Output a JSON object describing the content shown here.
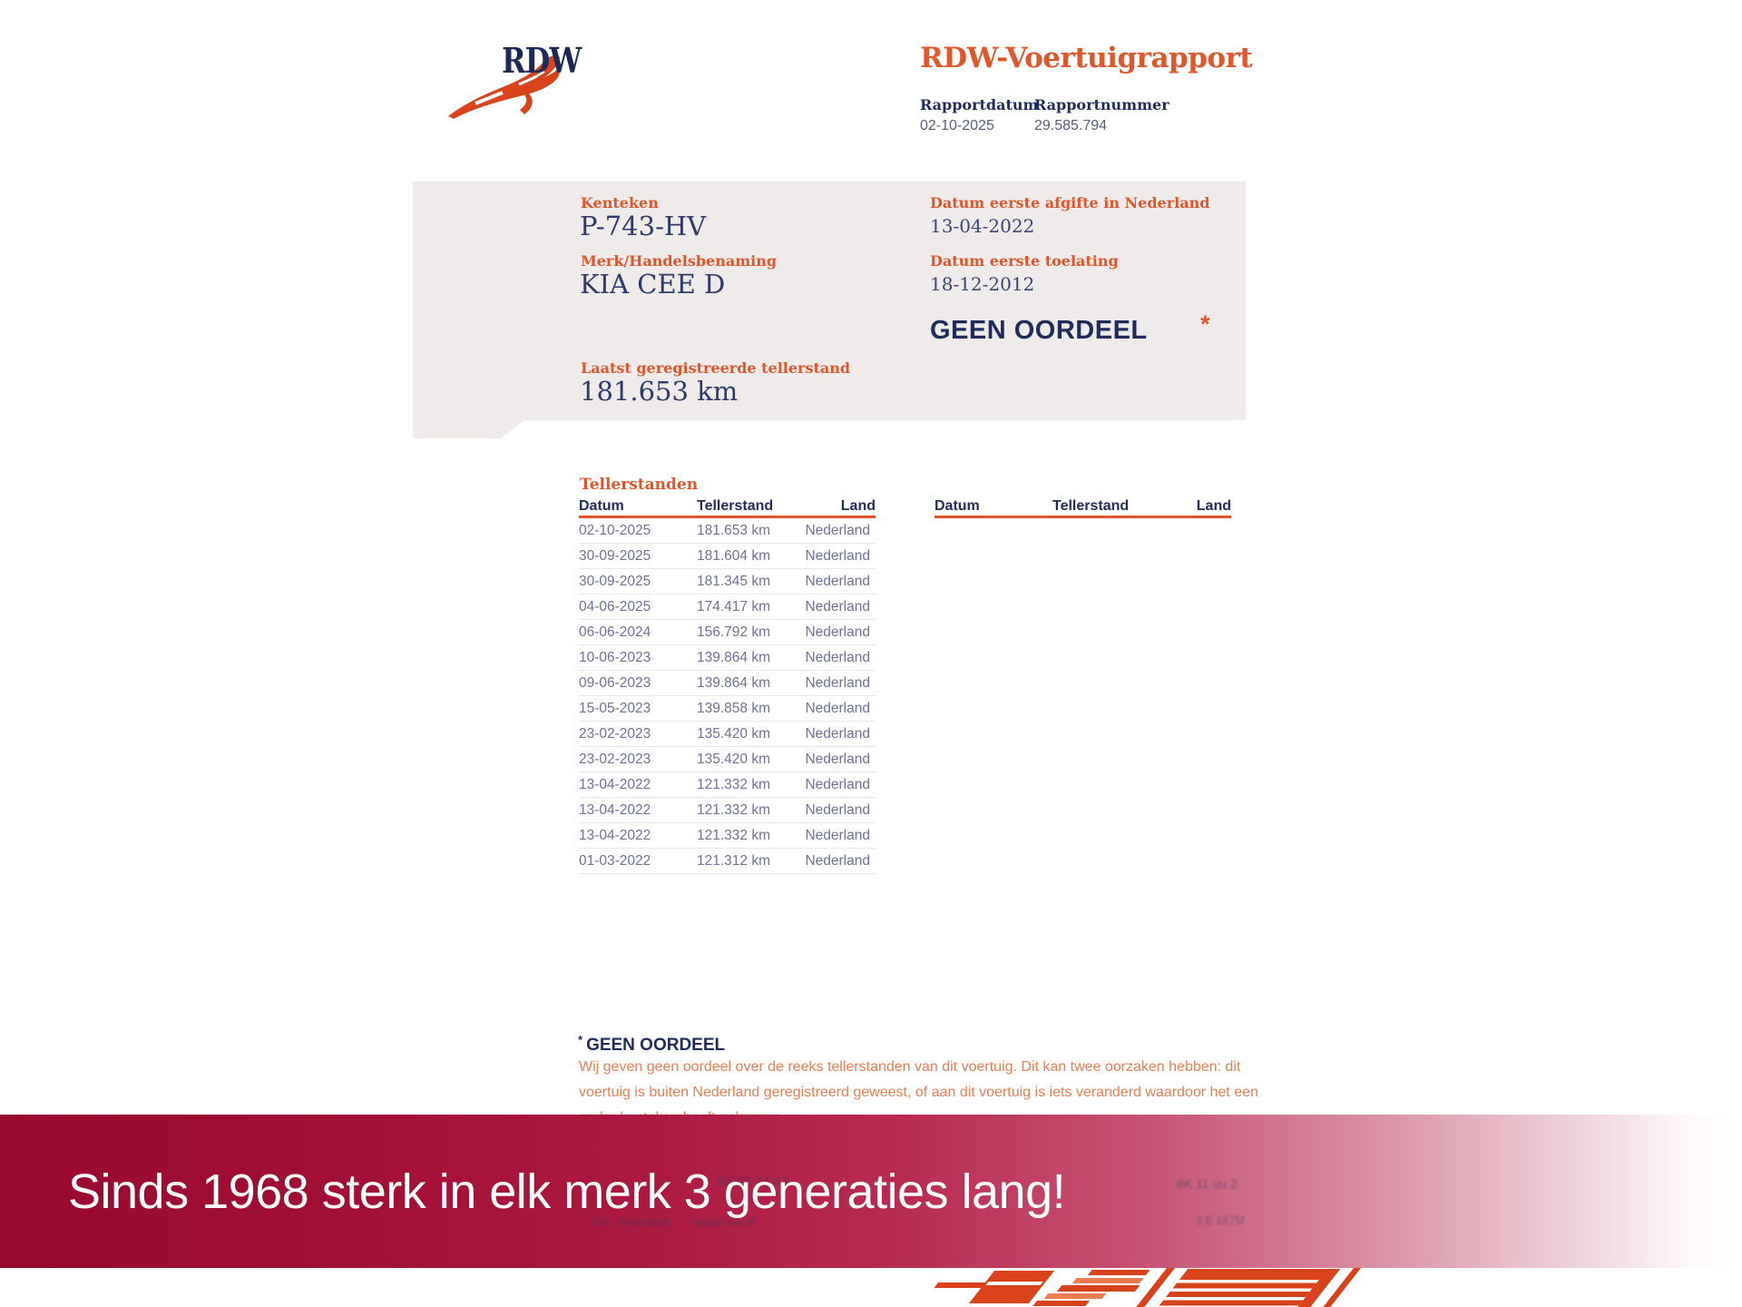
{
  "brand": {
    "logo_text": "RDW"
  },
  "report_header": {
    "title": "RDW-Voertuigrapport",
    "fields": [
      {
        "label": "Rapportdatum",
        "value": "02-10-2025"
      },
      {
        "label": "Rapportnummer",
        "value": "29.585.794"
      }
    ]
  },
  "summary_panel": {
    "kenteken_label": "Kenteken",
    "kenteken_value": "P-743-HV",
    "merk_label": "Merk/Handelsbenaming",
    "merk_value": "KIA CEE D",
    "tellerstand_label": "Laatst geregistreerde tellerstand",
    "tellerstand_value": "181.653 km",
    "afgifte_label": "Datum eerste afgifte in Nederland",
    "afgifte_value": "13-04-2022",
    "toelating_label": "Datum eerste toelating",
    "toelating_value": "18-12-2012",
    "verdict": "GEEN OORDEEL",
    "verdict_marker": "*"
  },
  "tellerstanden": {
    "section_title": "Tellerstanden",
    "columns": [
      "Datum",
      "Tellerstand",
      "Land"
    ],
    "rows": [
      {
        "datum": "02-10-2025",
        "tellerstand": "181.653 km",
        "land": "Nederland"
      },
      {
        "datum": "30-09-2025",
        "tellerstand": "181.604 km",
        "land": "Nederland"
      },
      {
        "datum": "30-09-2025",
        "tellerstand": "181.345 km",
        "land": "Nederland"
      },
      {
        "datum": "04-06-2025",
        "tellerstand": "174.417 km",
        "land": "Nederland"
      },
      {
        "datum": "06-06-2024",
        "tellerstand": "156.792 km",
        "land": "Nederland"
      },
      {
        "datum": "10-06-2023",
        "tellerstand": "139.864 km",
        "land": "Nederland"
      },
      {
        "datum": "09-06-2023",
        "tellerstand": "139.864 km",
        "land": "Nederland"
      },
      {
        "datum": "15-05-2023",
        "tellerstand": "139.858 km",
        "land": "Nederland"
      },
      {
        "datum": "23-02-2023",
        "tellerstand": "135.420 km",
        "land": "Nederland"
      },
      {
        "datum": "23-02-2023",
        "tellerstand": "135.420 km",
        "land": "Nederland"
      },
      {
        "datum": "13-04-2022",
        "tellerstand": "121.332 km",
        "land": "Nederland"
      },
      {
        "datum": "13-04-2022",
        "tellerstand": "121.332 km",
        "land": "Nederland"
      },
      {
        "datum": "13-04-2022",
        "tellerstand": "121.332 km",
        "land": "Nederland"
      },
      {
        "datum": "01-03-2022",
        "tellerstand": "121.312 km",
        "land": "Nederland"
      }
    ]
  },
  "footnote": {
    "marker": "*",
    "title": "GEEN OORDEEL",
    "body": "Wij geven geen oordeel over de reeks tellerstanden van dit voertuig. Dit kan twee oorzaken hebben: dit\nvoertuig is buiten Nederland geregistreerd geweest, of aan dit voertuig is iets veranderd waardoor het een\nander kenteken heeft gekregen."
  },
  "banner": {
    "text": "Sinds 1968 sterk in elk merk 3 generaties lang!"
  },
  "bleedthrough": {
    "phone": "88 00 74 47",
    "address": "RA, Veendam",
    "website": "www.rdw.nl",
    "code_top": "8K 11 uu 2",
    "code_bottom": "3 E 1675f"
  },
  "colors": {
    "brand_orange": "#d8431b",
    "label_orange": "#e2552a",
    "navy": "#1f2b5b",
    "table_text": "#6c7298",
    "panel_gray": "#efebea",
    "banner_red": "#98092f"
  }
}
